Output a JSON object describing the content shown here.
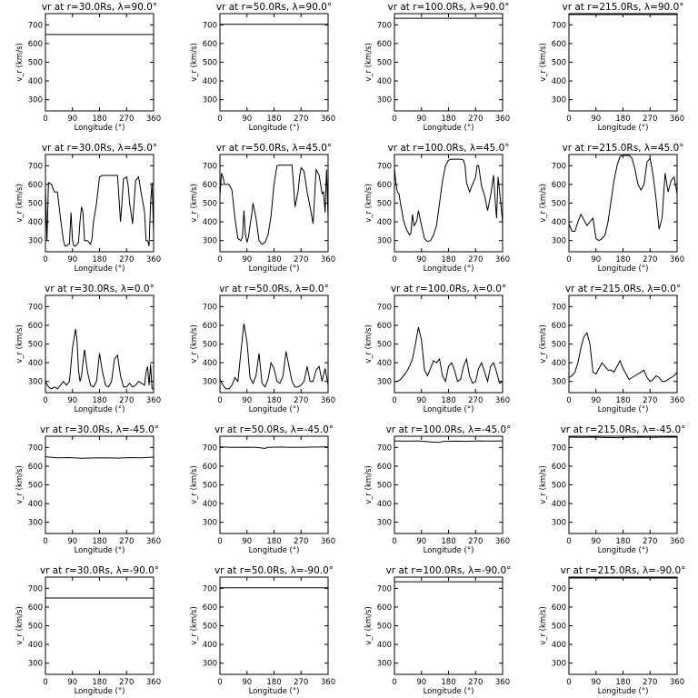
{
  "figure": {
    "xlabel": "Longitude (°)",
    "ylabel": "v_r (km/s)",
    "xlim": [
      0,
      360
    ],
    "ylim": [
      240,
      760
    ],
    "xticks": [
      "0",
      "90",
      "180",
      "270",
      "360"
    ],
    "yticks": [
      "300",
      "400",
      "500",
      "600",
      "700"
    ]
  },
  "chart_data": [
    {
      "type": "line",
      "title": "vr at r=30.0Rs, λ=90.0°",
      "x": [
        0,
        360
      ],
      "y": [
        648,
        648
      ]
    },
    {
      "type": "line",
      "title": "vr at r=50.0Rs, λ=90.0°",
      "x": [
        0,
        360
      ],
      "y": [
        703,
        703
      ]
    },
    {
      "type": "line",
      "title": "vr at r=100.0Rs, λ=90.0°",
      "x": [
        0,
        360
      ],
      "y": [
        735,
        735
      ]
    },
    {
      "type": "line",
      "title": "vr at r=215.0Rs, λ=90.0°",
      "x": [
        0,
        360
      ],
      "y": [
        755,
        755
      ]
    },
    {
      "type": "line",
      "title": "vr at r=30.0Rs, λ=45.0°",
      "x": [
        0,
        5,
        10,
        20,
        30,
        40,
        50,
        60,
        65,
        70,
        75,
        80,
        85,
        90,
        95,
        100,
        105,
        110,
        115,
        120,
        125,
        130,
        140,
        150,
        155,
        160,
        170,
        180,
        190,
        200,
        210,
        215,
        220,
        225,
        230,
        235,
        240,
        245,
        250,
        255,
        260,
        270,
        275,
        280,
        290,
        300,
        310,
        320,
        325,
        330,
        335,
        340,
        345,
        350,
        355,
        360
      ],
      "y": [
        590,
        300,
        610,
        600,
        560,
        560,
        420,
        300,
        270,
        270,
        280,
        280,
        450,
        300,
        270,
        270,
        280,
        290,
        400,
        480,
        450,
        300,
        300,
        280,
        310,
        400,
        500,
        640,
        648,
        648,
        648,
        648,
        648,
        648,
        648,
        648,
        648,
        520,
        400,
        510,
        630,
        640,
        600,
        500,
        390,
        620,
        640,
        540,
        500,
        450,
        300,
        300,
        270,
        500,
        610,
        340
      ]
    },
    {
      "type": "line",
      "title": "vr at r=50.0Rs, λ=45.0°",
      "x": [
        0,
        5,
        10,
        15,
        20,
        30,
        40,
        50,
        60,
        70,
        75,
        80,
        85,
        90,
        95,
        100,
        105,
        110,
        120,
        130,
        140,
        150,
        160,
        170,
        180,
        190,
        200,
        210,
        220,
        230,
        240,
        245,
        250,
        260,
        265,
        270,
        280,
        290,
        300,
        310,
        320,
        330,
        340,
        345,
        350,
        355,
        360
      ],
      "y": [
        540,
        660,
        640,
        600,
        600,
        600,
        570,
        420,
        310,
        300,
        320,
        460,
        330,
        290,
        320,
        380,
        430,
        500,
        420,
        300,
        280,
        290,
        330,
        430,
        600,
        700,
        703,
        703,
        703,
        703,
        703,
        600,
        480,
        560,
        640,
        690,
        670,
        560,
        480,
        390,
        680,
        650,
        550,
        560,
        450,
        680,
        420
      ]
    },
    {
      "type": "line",
      "title": "vr at r=100.0Rs, λ=45.0°",
      "x": [
        0,
        5,
        10,
        15,
        20,
        30,
        40,
        50,
        55,
        60,
        65,
        70,
        75,
        80,
        85,
        90,
        100,
        110,
        120,
        130,
        140,
        150,
        160,
        170,
        180,
        190,
        200,
        210,
        220,
        230,
        235,
        240,
        250,
        260,
        270,
        275,
        280,
        290,
        300,
        310,
        320,
        330,
        335,
        340,
        345,
        350,
        360
      ],
      "y": [
        690,
        600,
        560,
        550,
        500,
        410,
        360,
        330,
        340,
        440,
        380,
        390,
        410,
        460,
        420,
        380,
        310,
        295,
        300,
        330,
        380,
        500,
        620,
        700,
        730,
        735,
        735,
        735,
        735,
        730,
        700,
        610,
        560,
        600,
        640,
        700,
        700,
        590,
        540,
        460,
        540,
        650,
        520,
        420,
        640,
        560,
        400
      ]
    },
    {
      "type": "line",
      "title": "vr at r=215.0Rs, λ=45.0°",
      "x": [
        0,
        10,
        20,
        30,
        40,
        50,
        60,
        70,
        80,
        90,
        100,
        110,
        120,
        130,
        140,
        150,
        160,
        170,
        180,
        190,
        200,
        210,
        220,
        230,
        240,
        250,
        260,
        270,
        280,
        290,
        300,
        310,
        320,
        330,
        340,
        350,
        360
      ],
      "y": [
        390,
        350,
        350,
        400,
        440,
        410,
        380,
        400,
        420,
        310,
        300,
        310,
        330,
        400,
        510,
        620,
        700,
        750,
        755,
        755,
        755,
        740,
        680,
        600,
        570,
        600,
        720,
        740,
        650,
        520,
        360,
        420,
        660,
        560,
        620,
        640,
        550
      ]
    },
    {
      "type": "line",
      "title": "vr at r=30.0Rs, λ=0.0°",
      "x": [
        0,
        10,
        20,
        30,
        40,
        50,
        60,
        70,
        80,
        90,
        100,
        105,
        110,
        115,
        120,
        125,
        130,
        140,
        150,
        160,
        170,
        180,
        190,
        200,
        210,
        220,
        230,
        240,
        250,
        260,
        270,
        280,
        290,
        300,
        310,
        320,
        330,
        335,
        340,
        345,
        350,
        355,
        360
      ],
      "y": [
        300,
        270,
        260,
        270,
        260,
        280,
        300,
        280,
        300,
        480,
        580,
        520,
        360,
        300,
        330,
        400,
        470,
        350,
        280,
        270,
        300,
        450,
        350,
        280,
        270,
        300,
        420,
        440,
        330,
        270,
        270,
        290,
        270,
        280,
        300,
        290,
        280,
        350,
        380,
        280,
        390,
        260,
        260
      ]
    },
    {
      "type": "line",
      "title": "vr at r=50.0Rs, λ=0.0°",
      "x": [
        0,
        10,
        20,
        30,
        40,
        50,
        60,
        70,
        80,
        90,
        100,
        110,
        120,
        130,
        140,
        150,
        160,
        170,
        180,
        190,
        200,
        210,
        220,
        230,
        240,
        250,
        260,
        270,
        280,
        290,
        300,
        310,
        320,
        330,
        340,
        350,
        360
      ],
      "y": [
        310,
        280,
        260,
        260,
        280,
        320,
        300,
        460,
        610,
        510,
        320,
        290,
        330,
        450,
        290,
        270,
        310,
        400,
        370,
        300,
        290,
        330,
        460,
        380,
        300,
        270,
        270,
        280,
        300,
        380,
        300,
        300,
        360,
        380,
        300,
        370,
        280
      ]
    },
    {
      "type": "line",
      "title": "vr at r=100.0Rs, λ=0.0°",
      "x": [
        0,
        10,
        20,
        30,
        40,
        50,
        60,
        70,
        80,
        90,
        100,
        110,
        120,
        130,
        140,
        150,
        160,
        170,
        180,
        190,
        200,
        210,
        220,
        230,
        240,
        250,
        260,
        270,
        280,
        290,
        300,
        310,
        320,
        330,
        340,
        350,
        360
      ],
      "y": [
        300,
        300,
        310,
        330,
        350,
        380,
        420,
        500,
        590,
        520,
        360,
        330,
        370,
        410,
        400,
        420,
        330,
        300,
        380,
        400,
        360,
        300,
        310,
        380,
        420,
        330,
        290,
        300,
        370,
        400,
        350,
        300,
        380,
        400,
        350,
        290,
        300
      ]
    },
    {
      "type": "line",
      "title": "vr at r=215.0Rs, λ=0.0°",
      "x": [
        0,
        10,
        20,
        30,
        40,
        50,
        60,
        70,
        80,
        90,
        100,
        110,
        120,
        130,
        140,
        150,
        160,
        170,
        180,
        190,
        200,
        210,
        220,
        230,
        240,
        250,
        260,
        270,
        280,
        290,
        300,
        310,
        320,
        330,
        340,
        350,
        360
      ],
      "y": [
        320,
        330,
        350,
        400,
        480,
        540,
        560,
        500,
        350,
        340,
        370,
        400,
        380,
        360,
        360,
        350,
        380,
        410,
        370,
        340,
        310,
        320,
        330,
        340,
        350,
        360,
        320,
        300,
        310,
        330,
        320,
        300,
        300,
        310,
        320,
        330,
        350
      ]
    },
    {
      "type": "line",
      "title": "vr at r=30.0Rs, λ=-45.0°",
      "x": [
        0,
        40,
        80,
        120,
        160,
        200,
        240,
        280,
        320,
        360
      ],
      "y": [
        650,
        645,
        646,
        642,
        644,
        645,
        643,
        646,
        645,
        648
      ]
    },
    {
      "type": "line",
      "title": "vr at r=50.0Rs, λ=-45.0°",
      "x": [
        0,
        40,
        80,
        120,
        150,
        160,
        200,
        240,
        280,
        320,
        360
      ],
      "y": [
        703,
        700,
        701,
        700,
        695,
        700,
        702,
        700,
        701,
        702,
        703
      ]
    },
    {
      "type": "line",
      "title": "vr at r=100.0Rs, λ=-45.0°",
      "x": [
        0,
        40,
        80,
        120,
        150,
        160,
        200,
        240,
        280,
        320,
        360
      ],
      "y": [
        735,
        734,
        735,
        730,
        727,
        732,
        734,
        733,
        735,
        734,
        735
      ]
    },
    {
      "type": "line",
      "title": "vr at r=215.0Rs, λ=-45.0°",
      "x": [
        0,
        40,
        80,
        120,
        160,
        200,
        240,
        280,
        320,
        360
      ],
      "y": [
        755,
        754,
        755,
        753,
        752,
        754,
        755,
        754,
        755,
        755
      ]
    },
    {
      "type": "line",
      "title": "vr at r=30.0Rs, λ=-90.0°",
      "x": [
        0,
        360
      ],
      "y": [
        648,
        648
      ]
    },
    {
      "type": "line",
      "title": "vr at r=50.0Rs, λ=-90.0°",
      "x": [
        0,
        360
      ],
      "y": [
        703,
        703
      ]
    },
    {
      "type": "line",
      "title": "vr at r=100.0Rs, λ=-90.0°",
      "x": [
        0,
        360
      ],
      "y": [
        735,
        735
      ]
    },
    {
      "type": "line",
      "title": "vr at r=215.0Rs, λ=-90.0°",
      "x": [
        0,
        360
      ],
      "y": [
        755,
        755
      ]
    }
  ]
}
